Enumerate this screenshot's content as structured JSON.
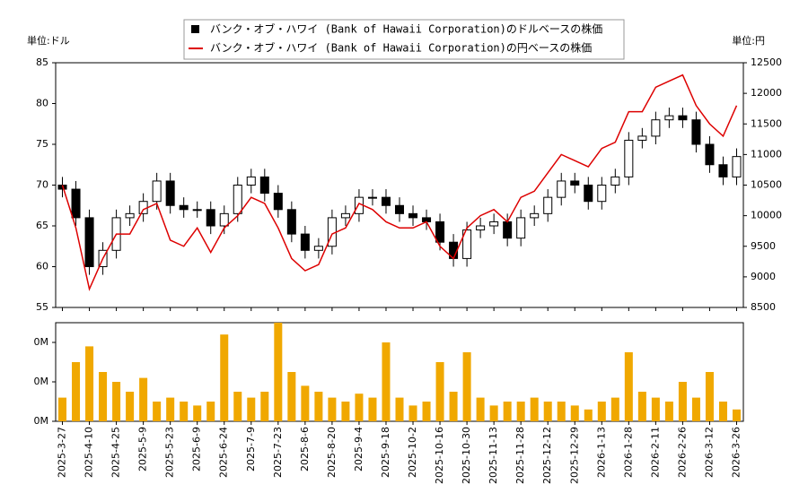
{
  "chart_data": {
    "type": "candlestick",
    "left_unit": "単位:ドル",
    "right_unit": "単位:円",
    "x": [
      "2025-3-27",
      "2025-4-3",
      "2025-4-10",
      "2025-4-17",
      "2025-4-25",
      "2025-5-2",
      "2025-5-9",
      "2025-5-16",
      "2025-5-23",
      "2025-5-30",
      "2025-6-9",
      "2025-6-16",
      "2025-6-24",
      "2025-7-1",
      "2025-7-9",
      "2025-7-16",
      "2025-7-23",
      "2025-7-30",
      "2025-8-6",
      "2025-8-13",
      "2025-8-20",
      "2025-8-27",
      "2025-9-4",
      "2025-9-11",
      "2025-9-18",
      "2025-9-25",
      "2025-10-2",
      "2025-10-9",
      "2025-10-16",
      "2025-10-23",
      "2025-10-30",
      "2025-11-6",
      "2025-11-13",
      "2025-11-20",
      "2025-11-28",
      "2025-12-5",
      "2025-12-12",
      "2025-12-19",
      "2025-12-29",
      "2026-1-6",
      "2026-1-13",
      "2026-1-21",
      "2026-1-28",
      "2026-2-4",
      "2026-2-11",
      "2026-2-18",
      "2026-2-26",
      "2026-3-5",
      "2026-3-12",
      "2026-3-19",
      "2026-3-26"
    ],
    "xticks": [
      "2025-3-27",
      "2025-4-10",
      "2025-4-25",
      "2025-5-9",
      "2025-5-23",
      "2025-6-9",
      "2025-6-24",
      "2025-7-9",
      "2025-7-23",
      "2025-8-6",
      "2025-8-20",
      "2025-9-4",
      "2025-9-18",
      "2025-10-2",
      "2025-10-16",
      "2025-10-30",
      "2025-11-13",
      "2025-11-28",
      "2025-12-12",
      "2025-12-29",
      "2026-1-13",
      "2026-1-28",
      "2026-2-11",
      "2026-2-26",
      "2026-3-12",
      "2026-3-26"
    ],
    "ylim": [
      55,
      85
    ],
    "yticks": [
      55,
      60,
      65,
      70,
      75,
      80,
      85
    ],
    "y2lim": [
      8500,
      12500
    ],
    "y2ticks": [
      8500,
      9000,
      9500,
      10000,
      10500,
      11000,
      11500,
      12000,
      12500
    ],
    "series": [
      {
        "name": "バンク・オブ・ハワイ (Bank of Hawaii Corporation)のドルベースの株価",
        "color": "#000000",
        "open": [
          70,
          69.5,
          66,
          60,
          62,
          66,
          66.5,
          68,
          70.5,
          67.5,
          67,
          67,
          65,
          66.5,
          70,
          71,
          69,
          67,
          64,
          62,
          62.5,
          66,
          66.5,
          68.5,
          68.5,
          67.5,
          66.5,
          66,
          65.5,
          63,
          61,
          64.5,
          65,
          65.5,
          63.5,
          66,
          66.5,
          68.5,
          70.5,
          70,
          68,
          70,
          71,
          75.5,
          76,
          78,
          78.5,
          78,
          75,
          72.5,
          71
        ],
        "high": [
          71,
          70.5,
          67,
          63,
          67,
          67.5,
          69,
          71.5,
          71.5,
          68.5,
          68,
          68,
          67.5,
          71,
          72,
          72,
          70,
          68,
          65,
          63.5,
          67,
          67.5,
          69.5,
          69.5,
          69.5,
          68.5,
          67.5,
          67,
          66.5,
          64,
          65.5,
          66,
          66.5,
          66.5,
          67,
          67.5,
          69.5,
          71.5,
          71.5,
          71,
          71,
          72,
          76.5,
          77,
          79,
          79.5,
          79.5,
          79,
          76,
          73.5,
          74.5
        ],
        "low": [
          68.5,
          65,
          59,
          59,
          61,
          65,
          65.5,
          67,
          66.5,
          66,
          66,
          64,
          64,
          65.5,
          69,
          68,
          66,
          63,
          61,
          61,
          61.5,
          65,
          65.5,
          67.5,
          66.5,
          65.5,
          65,
          64.5,
          62,
          60,
          60,
          63.5,
          64,
          62.5,
          62.5,
          65,
          65.5,
          67.5,
          69,
          67,
          67,
          69,
          70,
          74.5,
          75,
          77,
          77,
          74,
          71.5,
          70,
          70
        ],
        "close": [
          69.5,
          66,
          60,
          62,
          66,
          66.5,
          68,
          70.5,
          67.5,
          67,
          67,
          65,
          66.5,
          70,
          71,
          69,
          67,
          64,
          62,
          62.5,
          66,
          66.5,
          68.5,
          68.5,
          67.5,
          66.5,
          66,
          65.5,
          63,
          61,
          64.5,
          65,
          65.5,
          63.5,
          66,
          66.5,
          68.5,
          70.5,
          70,
          68,
          70,
          71,
          75.5,
          76,
          78,
          78.5,
          78,
          75,
          72.5,
          71,
          73.5
        ]
      },
      {
        "name": "バンク・オブ・ハワイ (Bank of Hawaii Corporation)の円ベースの株価",
        "color": "#dd0000",
        "axis": "y2",
        "values": [
          10500,
          9800,
          8800,
          9300,
          9700,
          9700,
          10100,
          10200,
          9600,
          9500,
          9800,
          9400,
          9800,
          10000,
          10300,
          10200,
          9800,
          9300,
          9100,
          9200,
          9700,
          9800,
          10200,
          10100,
          9900,
          9800,
          9800,
          9900,
          9500,
          9300,
          9800,
          10000,
          10100,
          9900,
          10300,
          10400,
          10700,
          11000,
          10900,
          10800,
          11100,
          11200,
          11700,
          11700,
          12100,
          12200,
          12300,
          11800,
          11500,
          11300,
          11800
        ]
      }
    ],
    "volume": {
      "color": "#f0a800",
      "ylim": [
        0,
        0.5
      ],
      "yticks": [
        {
          "value": 0,
          "label": "0M"
        },
        {
          "value": 0.2,
          "label": "0M"
        },
        {
          "value": 0.4,
          "label": "0M"
        }
      ],
      "values": [
        0.12,
        0.3,
        0.38,
        0.25,
        0.2,
        0.15,
        0.22,
        0.1,
        0.12,
        0.1,
        0.08,
        0.1,
        0.44,
        0.15,
        0.12,
        0.15,
        0.5,
        0.25,
        0.18,
        0.15,
        0.12,
        0.1,
        0.14,
        0.12,
        0.4,
        0.12,
        0.08,
        0.1,
        0.3,
        0.15,
        0.35,
        0.12,
        0.08,
        0.1,
        0.1,
        0.12,
        0.1,
        0.1,
        0.08,
        0.06,
        0.1,
        0.12,
        0.35,
        0.15,
        0.12,
        0.1,
        0.2,
        0.12,
        0.25,
        0.1,
        0.06
      ]
    }
  }
}
